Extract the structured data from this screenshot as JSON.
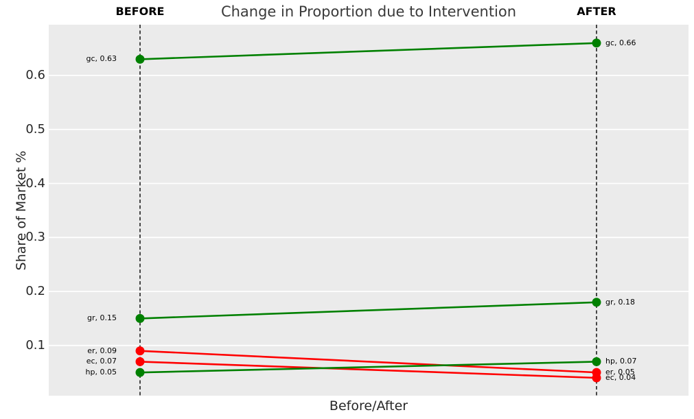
{
  "figure": {
    "before_header": "BEFORE",
    "after_header": "AFTER"
  },
  "chart_data": {
    "type": "line",
    "subtype": "slope-chart",
    "title": "Change in Proportion due to Intervention",
    "xlabel": "Before/After",
    "ylabel": "Share of Market %",
    "categories": [
      "BEFORE",
      "AFTER"
    ],
    "yticks": [
      0.1,
      0.2,
      0.3,
      0.4,
      0.5,
      0.6
    ],
    "ylim": [
      0.007,
      0.694
    ],
    "grid": true,
    "legend": false,
    "plot_background": "#ebebeb",
    "gridline_color": "#ffffff",
    "guide_line_style": "black-dashed-vertical",
    "colors": {
      "increase": "#008000",
      "decrease": "#ff0000"
    },
    "series": [
      {
        "name": "gc",
        "values": [
          0.63,
          0.66
        ],
        "color": "#008000",
        "labels": [
          "gc, 0.63",
          "gc, 0.66"
        ]
      },
      {
        "name": "gr",
        "values": [
          0.15,
          0.18
        ],
        "color": "#008000",
        "labels": [
          "gr, 0.15",
          "gr, 0.18"
        ]
      },
      {
        "name": "er",
        "values": [
          0.09,
          0.05
        ],
        "color": "#ff0000",
        "labels": [
          "er, 0.09",
          "er, 0.05"
        ]
      },
      {
        "name": "ec",
        "values": [
          0.07,
          0.04
        ],
        "color": "#ff0000",
        "labels": [
          "ec, 0.07",
          "ec, 0.04"
        ]
      },
      {
        "name": "hp",
        "values": [
          0.05,
          0.07
        ],
        "color": "#008000",
        "labels": [
          "hp, 0.05",
          "hp, 0.07"
        ]
      }
    ]
  }
}
